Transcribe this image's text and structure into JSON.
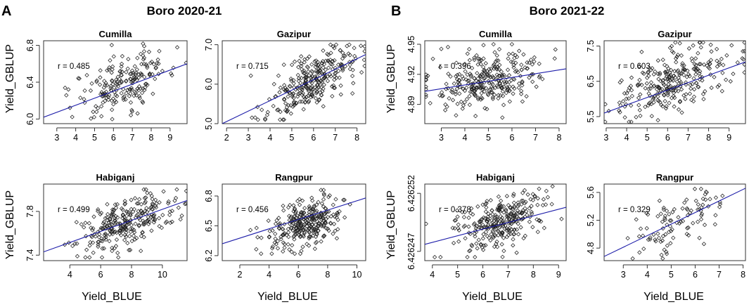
{
  "panels": [
    {
      "letter": "A",
      "title": "Boro 2020-21"
    },
    {
      "letter": "B",
      "title": "Boro 2021-22"
    }
  ],
  "axis_titles": {
    "y_label": "Yield_GBLUP",
    "x_label": "Yield_BLUE"
  },
  "chart_data": [
    {
      "type": "scatter",
      "panel": "A",
      "title": "Cumilla",
      "r_label": "r = 0.485",
      "xlabel": "",
      "ylabel": "",
      "xlim": [
        2.3,
        9.9
      ],
      "ylim": [
        5.95,
        6.85
      ],
      "xticks": [
        3,
        4,
        5,
        6,
        7,
        8,
        9
      ],
      "yticks": [
        6.0,
        6.4,
        6.8
      ],
      "ytick_labels": [
        "6.0",
        "6.4",
        "6.8"
      ],
      "x_center": 6.6,
      "x_sd": 1.25,
      "y_min": 5.98,
      "y_max": 6.82,
      "n": 200,
      "r": 0.485,
      "fit": {
        "x": [
          2.3,
          9.9
        ],
        "y": [
          6.02,
          6.6
        ]
      }
    },
    {
      "type": "scatter",
      "panel": "A",
      "title": "Gazipur",
      "r_label": "r = 0.715",
      "xlabel": "",
      "ylabel": "",
      "xlim": [
        1.8,
        8.4
      ],
      "ylim": [
        5.0,
        7.1
      ],
      "xticks": [
        2,
        3,
        4,
        5,
        6,
        7,
        8
      ],
      "yticks": [
        5.0,
        6.0,
        7.0
      ],
      "ytick_labels": [
        "5.0",
        "6.0",
        "7.0"
      ],
      "x_center": 5.9,
      "x_sd": 1.0,
      "y_min": 5.1,
      "y_max": 7.0,
      "n": 300,
      "r": 0.715,
      "fit": {
        "x": [
          1.8,
          8.4
        ],
        "y": [
          5.0,
          6.75
        ]
      }
    },
    {
      "type": "scatter",
      "panel": "A",
      "title": "Habiganj",
      "r_label": "r = 0.499",
      "xlabel": "",
      "ylabel": "",
      "xlim": [
        2.3,
        11.6
      ],
      "ylim": [
        7.35,
        8.05
      ],
      "xticks": [
        4,
        6,
        8,
        10
      ],
      "yticks": [
        7.4,
        7.8
      ],
      "ytick_labels": [
        "7.4",
        "7.8"
      ],
      "x_center": 7.6,
      "x_sd": 1.6,
      "y_min": 7.38,
      "y_max": 8.0,
      "n": 280,
      "r": 0.499,
      "fit": {
        "x": [
          2.3,
          11.6
        ],
        "y": [
          7.43,
          7.9
        ]
      }
    },
    {
      "type": "scatter",
      "panel": "A",
      "title": "Rangpur",
      "r_label": "r = 0.456",
      "xlabel": "",
      "ylabel": "",
      "xlim": [
        0.8,
        10.6
      ],
      "ylim": [
        6.15,
        6.92
      ],
      "xticks": [
        2,
        4,
        6,
        8,
        10
      ],
      "yticks": [
        6.2,
        6.5,
        6.8
      ],
      "ytick_labels": [
        "6.2",
        "6.5",
        "6.8"
      ],
      "x_center": 6.6,
      "x_sd": 1.2,
      "y_min": 6.22,
      "y_max": 6.86,
      "n": 300,
      "r": 0.456,
      "fit": {
        "x": [
          0.8,
          10.6
        ],
        "y": [
          6.32,
          6.78
        ]
      }
    },
    {
      "type": "scatter",
      "panel": "B",
      "title": "Cumilla",
      "r_label": "r = 0.396",
      "xlabel": "",
      "ylabel": "",
      "xlim": [
        2.3,
        8.3
      ],
      "ylim": [
        4.8708,
        4.9535
      ],
      "xticks": [
        3,
        4,
        5,
        6,
        7,
        8
      ],
      "yticks": [
        4.89,
        4.92,
        4.95
      ],
      "ytick_labels": [
        "4.89",
        "4.92",
        "4.95"
      ],
      "x_center": 5.0,
      "x_sd": 1.2,
      "y_min": 4.876,
      "y_max": 4.95,
      "n": 300,
      "r": 0.396,
      "fit": {
        "x": [
          2.3,
          8.3
        ],
        "y": [
          4.903,
          4.9255
        ]
      }
    },
    {
      "type": "scatter",
      "panel": "B",
      "title": "Gazipur",
      "r_label": "r = 0.603",
      "xlabel": "",
      "ylabel": "",
      "xlim": [
        2.9,
        9.8
      ],
      "ylim": [
        5.3,
        7.65
      ],
      "xticks": [
        3,
        4,
        5,
        6,
        7,
        8,
        9
      ],
      "yticks": [
        5.5,
        6.5,
        7.5
      ],
      "ytick_labels": [
        "5.5",
        "6.5",
        "7.5"
      ],
      "x_center": 6.2,
      "x_sd": 1.3,
      "y_min": 5.35,
      "y_max": 7.6,
      "n": 280,
      "r": 0.603,
      "fit": {
        "x": [
          2.9,
          9.8
        ],
        "y": [
          5.6,
          7.05
        ]
      }
    },
    {
      "type": "scatter",
      "panel": "B",
      "title": "Habiganj",
      "r_label": "r = 0.378",
      "xlabel": "",
      "ylabel": "",
      "xlim": [
        3.7,
        9.3
      ],
      "ylim": [
        6.4262462,
        6.4262528
      ],
      "xticks": [
        4,
        5,
        6,
        7,
        8,
        9
      ],
      "yticks": [
        6.426247,
        6.426252
      ],
      "ytick_labels": [
        "6.426247",
        "6.426252"
      ],
      "x_center": 6.6,
      "x_sd": 0.9,
      "y_min": 6.4262465,
      "y_max": 6.4262526,
      "n": 300,
      "r": 0.378,
      "fit": {
        "x": [
          3.7,
          9.3
        ],
        "y": [
          6.4262476,
          6.4262508
        ]
      }
    },
    {
      "type": "scatter",
      "panel": "B",
      "title": "Rangpur",
      "r_label": "r = 0.329",
      "xlabel": "",
      "ylabel": "",
      "xlim": [
        2.2,
        8.1
      ],
      "ylim": [
        4.62,
        5.72
      ],
      "xticks": [
        3,
        4,
        5,
        6,
        7,
        8
      ],
      "yticks": [
        4.8,
        5.2,
        5.6
      ],
      "ytick_labels": [
        "4.8",
        "5.2",
        "5.6"
      ],
      "x_center": 5.2,
      "x_sd": 1.0,
      "y_min": 4.65,
      "y_max": 5.65,
      "n": 100,
      "r": 0.329,
      "fit": {
        "x": [
          2.2,
          8.1
        ],
        "y": [
          4.68,
          5.66
        ]
      }
    }
  ]
}
